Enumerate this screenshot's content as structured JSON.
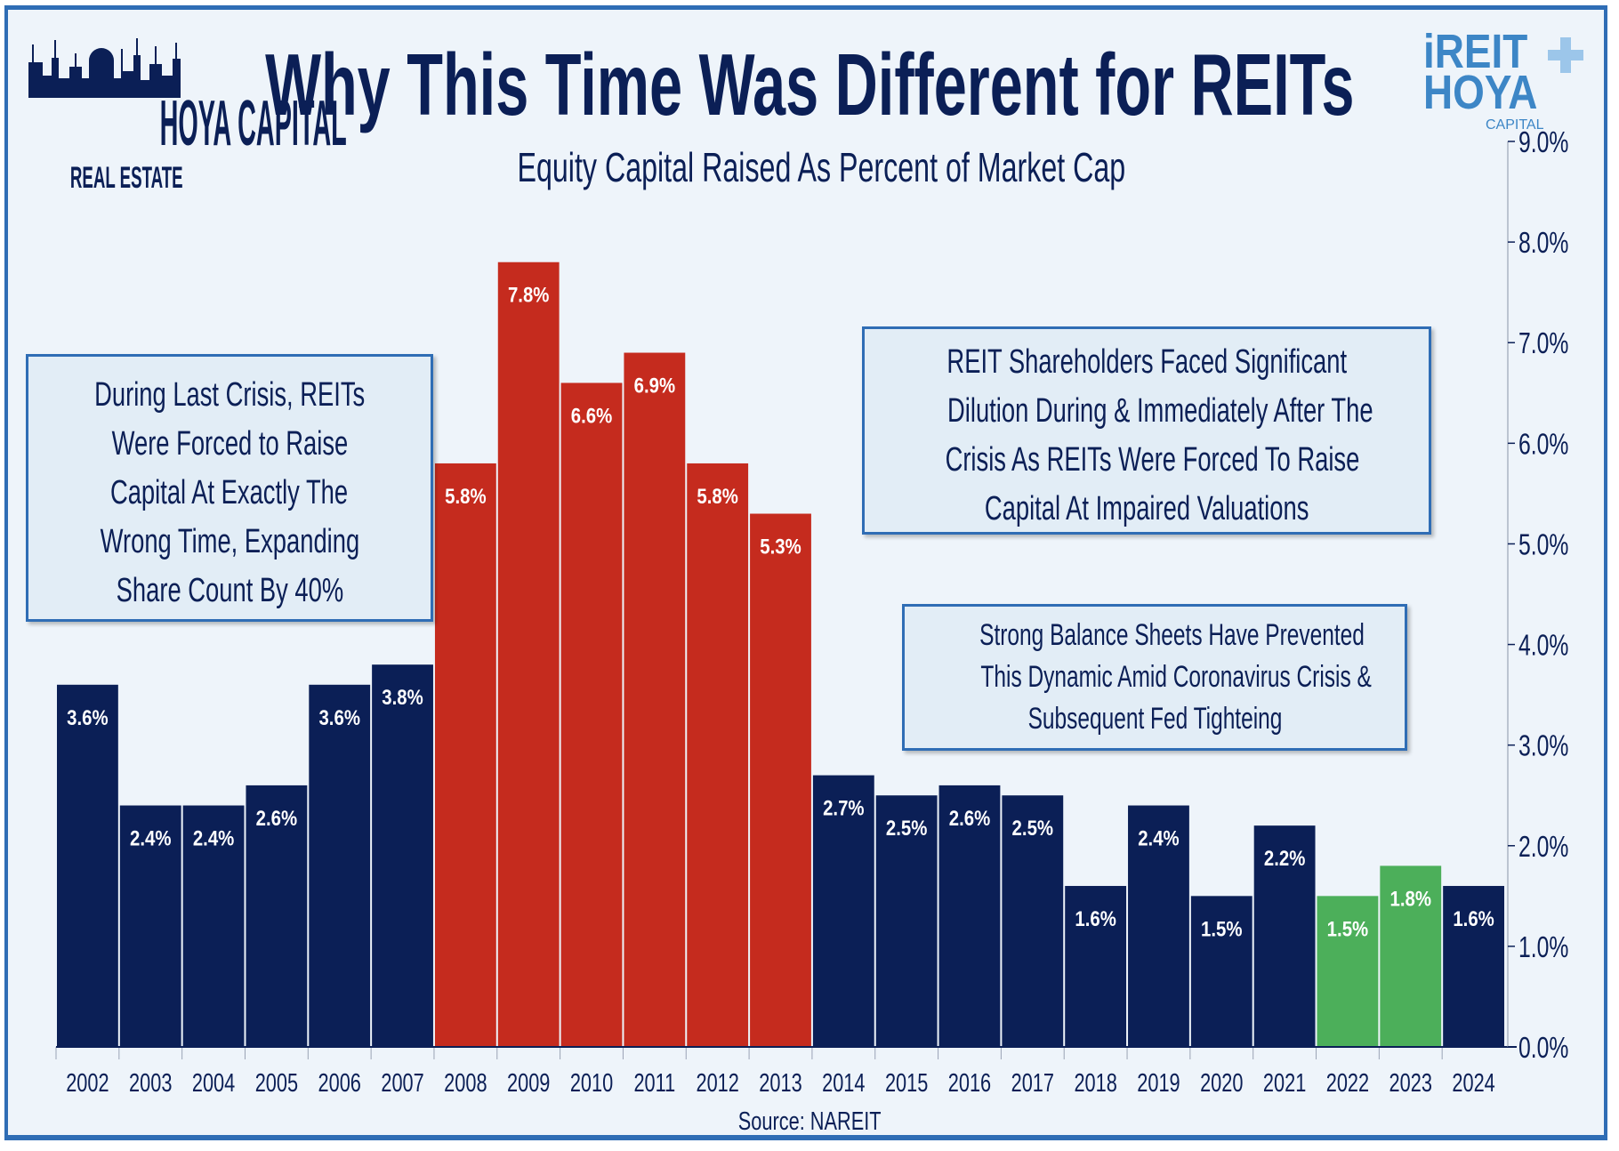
{
  "logos": {
    "left": {
      "line1": "HOYA CAPITAL",
      "line2": "REAL ESTATE"
    },
    "right": {
      "line1": "iREIT",
      "line2": "HOYA",
      "line3": "CAPITAL"
    }
  },
  "annotations": {
    "box1": [
      "During Last Crisis, REITs",
      "Were Forced to Raise",
      "Capital At Exactly The",
      "Wrong Time, Expanding",
      "Share Count By 40%"
    ],
    "box2": [
      "REIT Shareholders Faced Significant",
      "Dilution During & Immediately After The",
      "Crisis As REITs Were Forced To Raise",
      "Capital At Impaired Valuations"
    ],
    "box3": [
      "Strong Balance Sheets Have Prevented",
      "This Dynamic Amid Coronavirus Crisis &",
      "Subsequent Fed Tighteing"
    ]
  },
  "source": "Source: NAREIT",
  "chart_data": {
    "type": "bar",
    "title": "Why This Time Was Different for REITs",
    "subtitle": "Equity Capital Raised As Percent of Market Cap",
    "xlabel": "",
    "ylabel": "",
    "categories": [
      "2002",
      "2003",
      "2004",
      "2005",
      "2006",
      "2007",
      "2008",
      "2009",
      "2010",
      "2011",
      "2012",
      "2013",
      "2014",
      "2015",
      "2016",
      "2017",
      "2018",
      "2019",
      "2020",
      "2021",
      "2022",
      "2023",
      "2024"
    ],
    "values": [
      3.6,
      2.4,
      2.4,
      2.6,
      3.6,
      3.8,
      5.8,
      7.8,
      6.6,
      6.9,
      5.8,
      5.3,
      2.7,
      2.5,
      2.6,
      2.5,
      1.6,
      2.4,
      1.5,
      2.2,
      1.5,
      1.8,
      1.6
    ],
    "data_labels": [
      "3.6%",
      "2.4%",
      "2.4%",
      "2.6%",
      "3.6%",
      "3.8%",
      "5.8%",
      "7.8%",
      "6.6%",
      "6.9%",
      "5.8%",
      "5.3%",
      "2.7%",
      "2.5%",
      "2.6%",
      "2.5%",
      "1.6%",
      "2.4%",
      "1.5%",
      "2.2%",
      "1.5%",
      "1.8%",
      "1.6%"
    ],
    "bar_colors": [
      "#0b1f56",
      "#0b1f56",
      "#0b1f56",
      "#0b1f56",
      "#0b1f56",
      "#0b1f56",
      "#c52b1e",
      "#c52b1e",
      "#c52b1e",
      "#c52b1e",
      "#c52b1e",
      "#c52b1e",
      "#0b1f56",
      "#0b1f56",
      "#0b1f56",
      "#0b1f56",
      "#0b1f56",
      "#0b1f56",
      "#0b1f56",
      "#0b1f56",
      "#4caf5a",
      "#4caf5a",
      "#0b1f56"
    ],
    "ylim": [
      0,
      9
    ],
    "yticks": [
      "0.0%",
      "1.0%",
      "2.0%",
      "3.0%",
      "4.0%",
      "5.0%",
      "6.0%",
      "7.0%",
      "8.0%",
      "9.0%"
    ],
    "y_axis_position": "right",
    "grid": false,
    "legend": "none"
  }
}
